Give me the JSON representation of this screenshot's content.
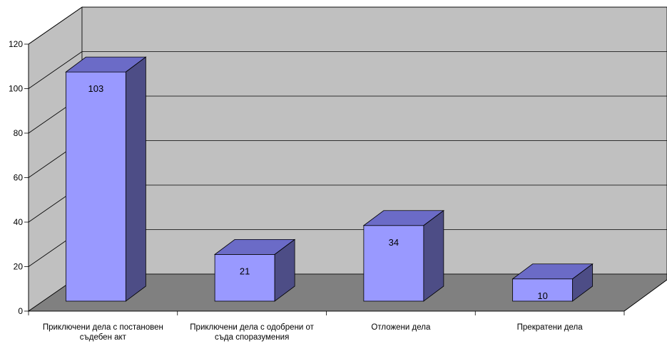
{
  "chart_data": {
    "type": "bar",
    "categories": [
      [
        "Приключени дела с постановен",
        "съдебен акт"
      ],
      [
        "Приключени дела с одобрени от",
        "съда споразумения"
      ],
      [
        "Отложени дела"
      ],
      [
        "Прекратени дела"
      ]
    ],
    "values": [
      103,
      21,
      34,
      10
    ],
    "data_labels": [
      "103",
      "21",
      "34",
      "10"
    ],
    "y_ticks": [
      "0",
      "20",
      "40",
      "60",
      "80",
      "100",
      "120"
    ],
    "ylim": [
      0,
      120
    ],
    "grid": true,
    "legend": "none",
    "style": "3d-column",
    "colors": {
      "bar_front": "#9999ff",
      "bar_top": "#6b6bc7",
      "bar_side": "#4d4d86",
      "back_wall": "#c0c0c0",
      "side_wall": "#c0c0c0",
      "floor": "#808080"
    }
  }
}
